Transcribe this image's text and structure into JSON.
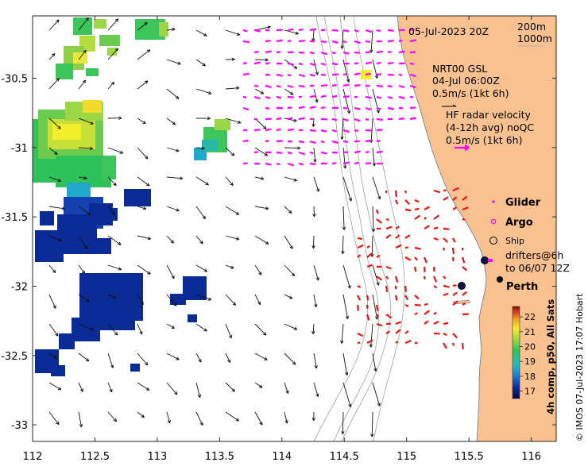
{
  "map": {
    "lon_range": [
      112,
      116.2
    ],
    "lat_range": [
      -33.12,
      -30.05
    ],
    "x_ticks": [
      "112",
      "112.5",
      "113",
      "113.5",
      "114",
      "114.5",
      "115",
      "115.5",
      "116"
    ],
    "y_ticks": [
      "-30.5",
      "-31",
      "-31.5",
      "-32",
      "-32.5",
      "-33"
    ],
    "y_tick_values": [
      -30.5,
      -31,
      -31.5,
      -32,
      -32.5,
      -33
    ],
    "x_tick_values": [
      112,
      112.5,
      113,
      113.5,
      114,
      114.5,
      115,
      115.5,
      116
    ]
  },
  "timestamp": "05-Jul-2023 20Z",
  "contours": {
    "c1": "200m",
    "c2": "1000m"
  },
  "altimetry": {
    "source": "NRT00 GSL",
    "date": "04-Jul 06:00Z",
    "scale": "0.5m/s (1kt 6h)"
  },
  "hf_radar": {
    "line1": "HF radar velocity",
    "line2": "(4-12h avg) noQC",
    "scale": "0.5m/s (1kt 6h)"
  },
  "legend": {
    "glider": "Glider",
    "argo": "Argo",
    "ship": "Ship",
    "drifters_line1": "drifters@6h",
    "drifters_line2": "to 06/07 12Z"
  },
  "places": {
    "city": "Perth"
  },
  "colorbar": {
    "ticks": [
      "17",
      "18",
      "19",
      "20",
      "21",
      "22"
    ],
    "tick_values": [
      17,
      18,
      19,
      20,
      21,
      22
    ],
    "range": [
      16.5,
      22.7
    ],
    "label": "4h comp, p50, All Sats"
  },
  "credit": "© IMOS 07-Jul-2023 17:07 Hobart",
  "colors": {
    "land": "#f9c18f",
    "argo": "#ff00ff",
    "hf_arrow": "#ff00ff",
    "drifter": "#e8150f",
    "coast": "#a0a0a0"
  }
}
